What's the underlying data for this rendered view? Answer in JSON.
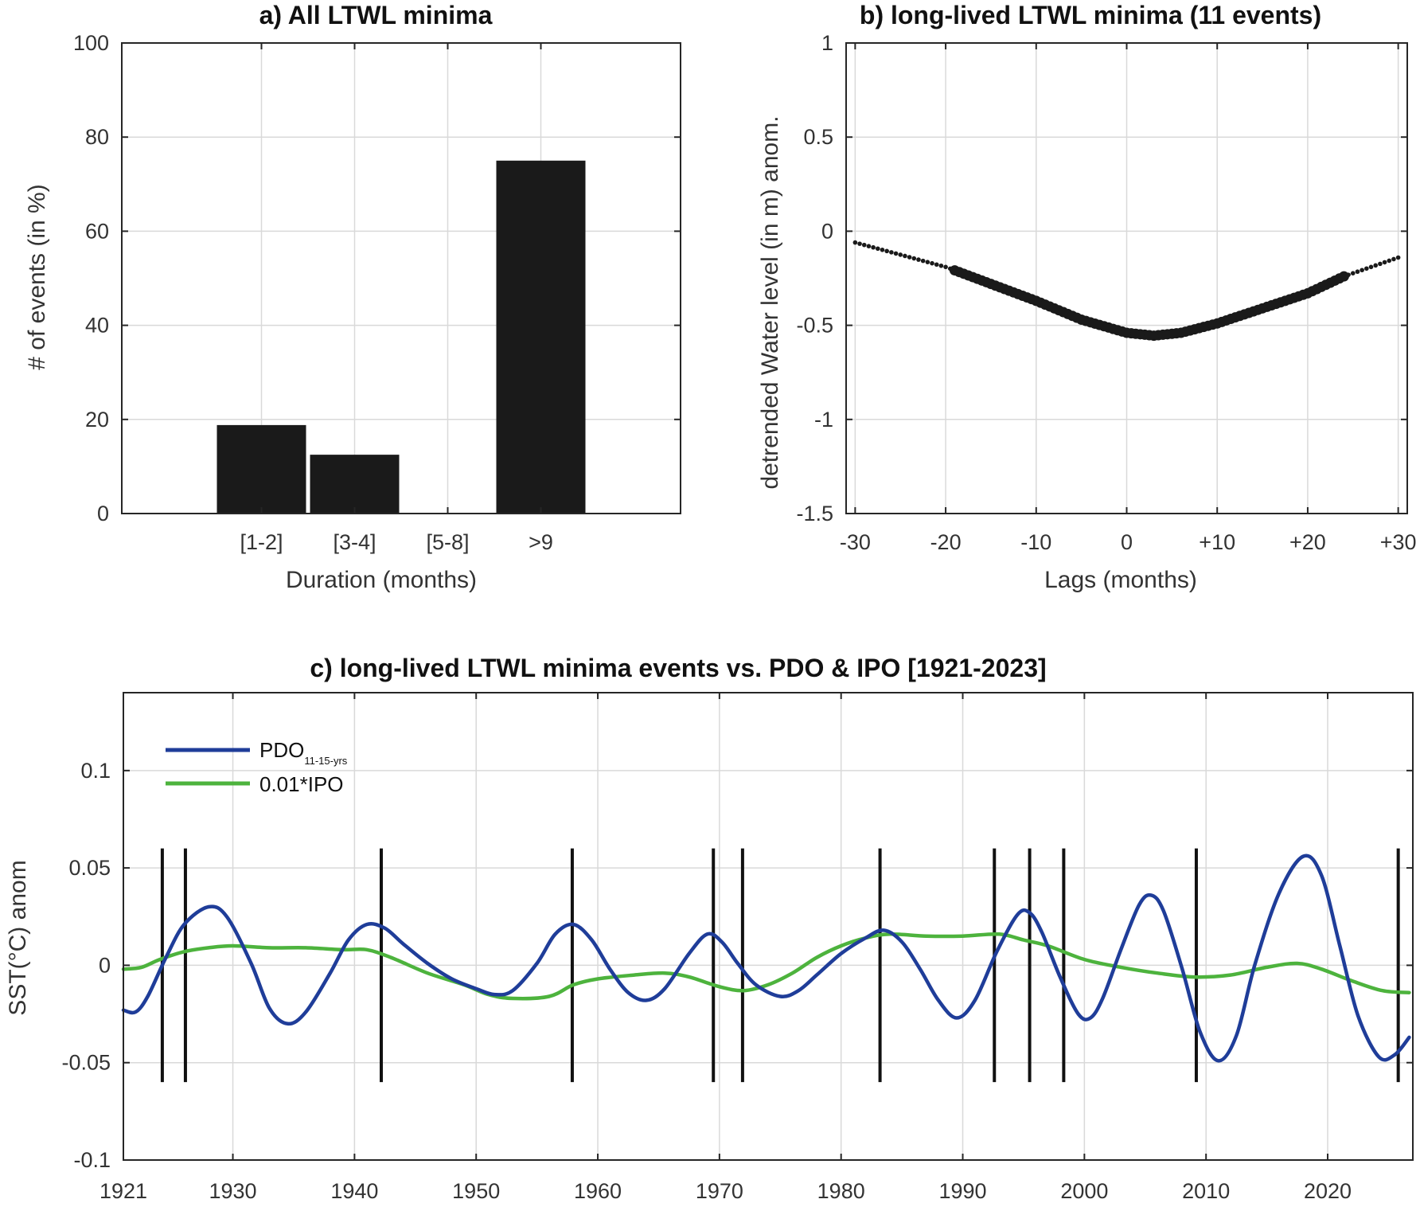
{
  "chart_data": [
    {
      "id": "a",
      "type": "bar",
      "title": "a) All LTWL minima",
      "xlabel": "Duration (months)",
      "ylabel": "# of events (in %)",
      "categories": [
        "[1-2]",
        "[3-4]",
        "[5-8]",
        ">9"
      ],
      "values": [
        18.8,
        12.5,
        0,
        75
      ],
      "ylim": [
        0,
        100
      ],
      "yticks": [
        0,
        20,
        40,
        60,
        80,
        100
      ],
      "grid": true,
      "bar_color": "#1a1a1a"
    },
    {
      "id": "b",
      "type": "scatter",
      "title": "b) long-lived LTWL minima (11 events)",
      "xlabel": "Lags (months)",
      "ylabel": "detrended Water level (in m) anom.",
      "xlim": [
        -31,
        31
      ],
      "ylim": [
        -1.5,
        1
      ],
      "xticks": [
        -30,
        -20,
        -10,
        0,
        10,
        20,
        30
      ],
      "xtick_labels": [
        "-30",
        "-20",
        "-10",
        "0",
        "+10",
        "+20",
        "+30"
      ],
      "yticks": [
        -1.5,
        -1,
        -0.5,
        0,
        0.5,
        1
      ],
      "ytick_labels": [
        "-1.5",
        "-1",
        "-0.5",
        "0",
        "0.5",
        "1"
      ],
      "grid": true,
      "marker_color": "#1a1a1a",
      "curve_points": [
        [
          -30,
          -0.06
        ],
        [
          -20,
          -0.19
        ],
        [
          -10,
          -0.37
        ],
        [
          -5,
          -0.47
        ],
        [
          0,
          -0.54
        ],
        [
          3,
          -0.555
        ],
        [
          6,
          -0.54
        ],
        [
          10,
          -0.49
        ],
        [
          15,
          -0.41
        ],
        [
          20,
          -0.33
        ],
        [
          24,
          -0.24
        ],
        [
          30,
          -0.14
        ]
      ],
      "large_marker_range": [
        -19,
        24
      ]
    },
    {
      "id": "c",
      "type": "line",
      "title": "c) long-lived LTWL minima events vs. PDO & IPO [1921-2023]",
      "ylabel": "SST(°C) anom",
      "xlim": [
        1921,
        2027
      ],
      "ylim": [
        -0.1,
        0.14
      ],
      "xticks": [
        1921,
        1930,
        1940,
        1950,
        1960,
        1970,
        1980,
        1990,
        2000,
        2010,
        2020
      ],
      "yticks": [
        -0.1,
        -0.05,
        0,
        0.05,
        0.1
      ],
      "ytick_labels": [
        "-0.1",
        "-0.05",
        "0",
        "0.05",
        "0.1"
      ],
      "grid": true,
      "legend": {
        "position": "top-left",
        "entries": [
          {
            "label": "PDO",
            "subscript": "11-15-yrs",
            "color": "#1f3d99"
          },
          {
            "label": "0.01*IPO",
            "subscript": "",
            "color": "#4db33d"
          }
        ]
      },
      "event_lines": {
        "years": [
          1924.2,
          1926.1,
          1942.2,
          1957.9,
          1969.5,
          1971.9,
          1983.2,
          1992.6,
          1995.5,
          1998.3,
          2009.2,
          2025.8
        ],
        "ymin": -0.06,
        "ymax": 0.06,
        "color": "#111111"
      },
      "series": [
        {
          "name": "PDO",
          "color": "#1f3d99",
          "points": [
            [
              1921,
              -0.023
            ],
            [
              1922,
              -0.024
            ],
            [
              1923,
              -0.016
            ],
            [
              1924.5,
              0.004
            ],
            [
              1926,
              0.021
            ],
            [
              1928,
              0.03
            ],
            [
              1929.5,
              0.025
            ],
            [
              1931.5,
              0.001
            ],
            [
              1933,
              -0.022
            ],
            [
              1934.5,
              -0.03
            ],
            [
              1936,
              -0.024
            ],
            [
              1938,
              -0.004
            ],
            [
              1939.5,
              0.013
            ],
            [
              1941,
              0.021
            ],
            [
              1942.5,
              0.019
            ],
            [
              1944,
              0.011
            ],
            [
              1946,
              0.001
            ],
            [
              1948,
              -0.007
            ],
            [
              1950,
              -0.012
            ],
            [
              1951.5,
              -0.015
            ],
            [
              1953,
              -0.013
            ],
            [
              1955,
              0.001
            ],
            [
              1956.5,
              0.016
            ],
            [
              1958,
              0.021
            ],
            [
              1959.5,
              0.013
            ],
            [
              1961,
              -0.002
            ],
            [
              1962.5,
              -0.014
            ],
            [
              1964,
              -0.018
            ],
            [
              1965.5,
              -0.012
            ],
            [
              1967.5,
              0.006
            ],
            [
              1969,
              0.016
            ],
            [
              1970.2,
              0.012
            ],
            [
              1971.5,
              0.001
            ],
            [
              1973,
              -0.01
            ],
            [
              1975,
              -0.016
            ],
            [
              1976.5,
              -0.013
            ],
            [
              1978,
              -0.005
            ],
            [
              1980,
              0.006
            ],
            [
              1982,
              0.014
            ],
            [
              1983.5,
              0.018
            ],
            [
              1985,
              0.012
            ],
            [
              1986.5,
              -0.002
            ],
            [
              1988,
              -0.018
            ],
            [
              1989.5,
              -0.027
            ],
            [
              1991,
              -0.018
            ],
            [
              1992.8,
              0.007
            ],
            [
              1994.5,
              0.026
            ],
            [
              1995.5,
              0.027
            ],
            [
              1996.5,
              0.017
            ],
            [
              1998,
              -0.006
            ],
            [
              1999.5,
              -0.025
            ],
            [
              2000.5,
              -0.027
            ],
            [
              2001.5,
              -0.017
            ],
            [
              2003,
              0.008
            ],
            [
              2004.5,
              0.031
            ],
            [
              2005.5,
              0.036
            ],
            [
              2006.5,
              0.028
            ],
            [
              2008,
              -0.001
            ],
            [
              2009.5,
              -0.034
            ],
            [
              2011,
              -0.049
            ],
            [
              2012.5,
              -0.036
            ],
            [
              2014,
              0.0
            ],
            [
              2016,
              0.037
            ],
            [
              2018,
              0.056
            ],
            [
              2019.5,
              0.046
            ],
            [
              2021,
              0.01
            ],
            [
              2022.5,
              -0.026
            ],
            [
              2024.2,
              -0.047
            ],
            [
              2025.5,
              -0.046
            ],
            [
              2026.7,
              -0.037
            ]
          ]
        },
        {
          "name": "0.01*IPO",
          "color": "#4db33d",
          "points": [
            [
              1921,
              -0.002
            ],
            [
              1922.5,
              -0.001
            ],
            [
              1924,
              0.003
            ],
            [
              1926,
              0.007
            ],
            [
              1928,
              0.009
            ],
            [
              1930,
              0.01
            ],
            [
              1933,
              0.009
            ],
            [
              1936,
              0.009
            ],
            [
              1939,
              0.008
            ],
            [
              1941,
              0.008
            ],
            [
              1943,
              0.004
            ],
            [
              1946,
              -0.004
            ],
            [
              1949,
              -0.01
            ],
            [
              1951,
              -0.015
            ],
            [
              1953,
              -0.017
            ],
            [
              1956,
              -0.016
            ],
            [
              1958,
              -0.01
            ],
            [
              1960,
              -0.007
            ],
            [
              1963,
              -0.005
            ],
            [
              1965.5,
              -0.004
            ],
            [
              1967.5,
              -0.006
            ],
            [
              1970,
              -0.011
            ],
            [
              1972,
              -0.013
            ],
            [
              1974,
              -0.01
            ],
            [
              1976,
              -0.004
            ],
            [
              1978,
              0.004
            ],
            [
              1980,
              0.01
            ],
            [
              1982,
              0.014
            ],
            [
              1984,
              0.016
            ],
            [
              1987,
              0.015
            ],
            [
              1990,
              0.015
            ],
            [
              1993,
              0.016
            ],
            [
              1995,
              0.013
            ],
            [
              1997,
              0.01
            ],
            [
              2000,
              0.003
            ],
            [
              2003,
              -0.001
            ],
            [
              2006,
              -0.004
            ],
            [
              2009,
              -0.006
            ],
            [
              2012,
              -0.005
            ],
            [
              2015,
              -0.001
            ],
            [
              2017.5,
              0.001
            ],
            [
              2019.5,
              -0.002
            ],
            [
              2022,
              -0.008
            ],
            [
              2024.5,
              -0.013
            ],
            [
              2026.7,
              -0.014
            ]
          ]
        }
      ]
    }
  ]
}
